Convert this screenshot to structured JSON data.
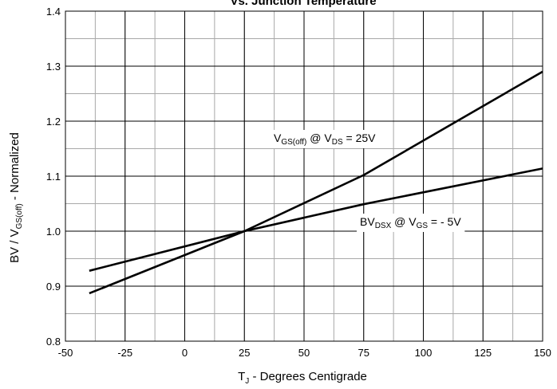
{
  "chart_data": {
    "type": "line",
    "title": "Vs. Junction Temperature",
    "xlabel": {
      "main": "T",
      "sub": "J",
      "rest": " - Degrees Centigrade"
    },
    "ylabel": {
      "a": "BV / V",
      "sub": "GS(off)",
      "b": " - Normalized"
    },
    "xlim": [
      -50,
      150
    ],
    "ylim": [
      0.8,
      1.4
    ],
    "x_ticks": [
      -50,
      -25,
      0,
      25,
      50,
      75,
      100,
      125,
      150
    ],
    "x_tick_labels": [
      "-50",
      "-25",
      "0",
      "25",
      "50",
      "75",
      "100",
      "125",
      "150"
    ],
    "y_ticks": [
      0.8,
      0.9,
      1.0,
      1.1,
      1.2,
      1.3,
      1.4
    ],
    "y_tick_labels": [
      "0.8",
      "0.9",
      "1.0",
      "1.1",
      "1.2",
      "1.3",
      "1.4"
    ],
    "grid": true,
    "minor_grid_step_x": 12.5,
    "minor_grid_step_y": 0.05,
    "series": [
      {
        "label_parts": [
          {
            "t": "V",
            "sub": false
          },
          {
            "t": "GS(off)",
            "sub": true
          },
          {
            "t": " @ V",
            "sub": false
          },
          {
            "t": "DS",
            "sub": true
          },
          {
            "t": " = 25V",
            "sub": false
          }
        ],
        "x": [
          -40,
          25,
          75,
          150
        ],
        "y": [
          0.887,
          1.0,
          1.102,
          1.29
        ],
        "color": "#000000"
      },
      {
        "label_parts": [
          {
            "t": "BV",
            "sub": false
          },
          {
            "t": "DSX",
            "sub": true
          },
          {
            "t": " @ V",
            "sub": false
          },
          {
            "t": "GS",
            "sub": true
          },
          {
            "t": " = - 5V",
            "sub": false
          }
        ],
        "x": [
          -40,
          25,
          75,
          150
        ],
        "y": [
          0.928,
          1.0,
          1.049,
          1.114
        ],
        "color": "#000000"
      }
    ]
  }
}
